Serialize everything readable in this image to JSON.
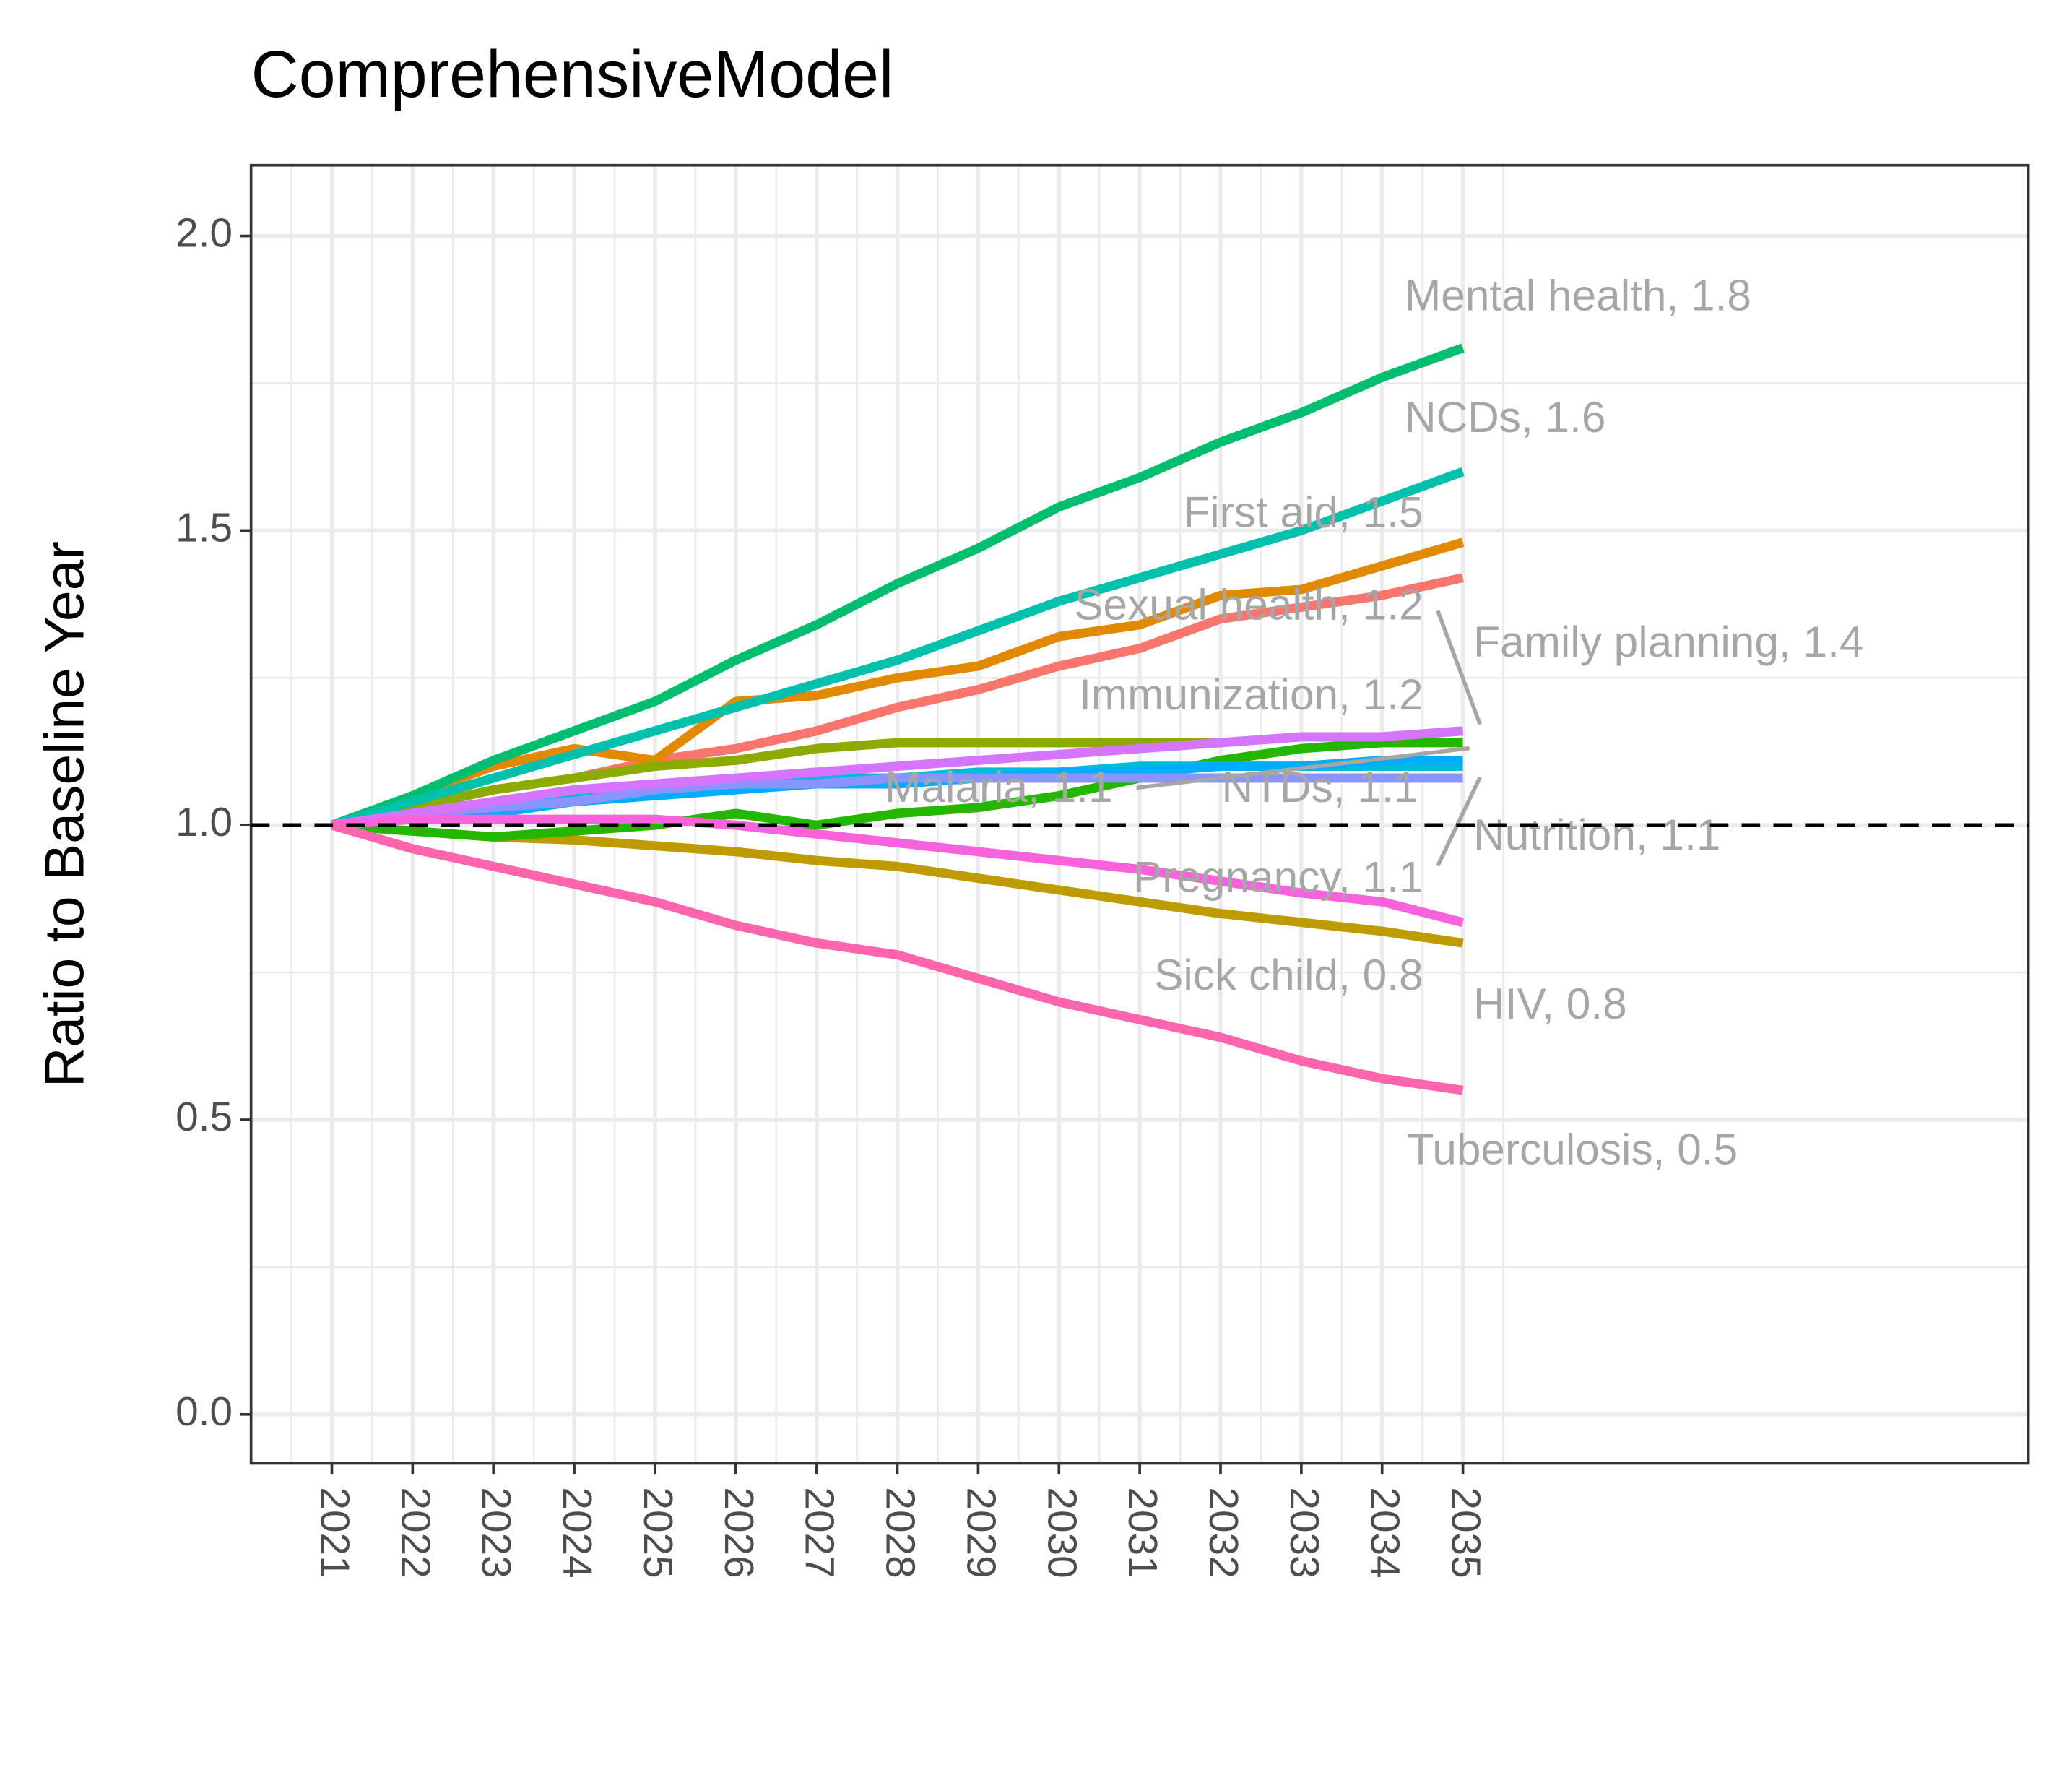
{
  "chart_data": {
    "type": "line",
    "title": "ComprehensiveModel",
    "y_label": "Ratio to Baseline Year",
    "x": [
      2021,
      2022,
      2023,
      2024,
      2025,
      2026,
      2027,
      2028,
      2029,
      2030,
      2031,
      2032,
      2033,
      2034,
      2035
    ],
    "xlim": [
      2020,
      2042
    ],
    "xticks": [
      2021,
      2022,
      2023,
      2024,
      2025,
      2026,
      2027,
      2028,
      2029,
      2030,
      2031,
      2032,
      2033,
      2034,
      2035
    ],
    "ylim": [
      -0.083,
      2.12
    ],
    "yticks": [
      {
        "value": 0,
        "label": "0.0"
      },
      0.5,
      {
        "value": 1,
        "label": "1.0"
      },
      1.5,
      {
        "value": 2,
        "label": "2.0"
      }
    ],
    "grid": true,
    "hline": 1,
    "series": [
      {
        "label": "Family planning, 1.4",
        "color": "#F8766D",
        "values": [
          1.0,
          1.03,
          1.06,
          1.08,
          1.11,
          1.13,
          1.16,
          1.2,
          1.23,
          1.27,
          1.3,
          1.35,
          1.37,
          1.39,
          1.42
        ]
      },
      {
        "label": "First aid, 1.5",
        "color": "#E18A00",
        "values": [
          1.0,
          1.05,
          1.1,
          1.13,
          1.11,
          1.21,
          1.22,
          1.25,
          1.27,
          1.32,
          1.34,
          1.39,
          1.4,
          1.44,
          1.48
        ]
      },
      {
        "label": "HIV, 0.8",
        "color": "#BE9C00",
        "values": [
          1.0,
          0.99,
          0.98,
          0.975,
          0.965,
          0.955,
          0.94,
          0.93,
          0.91,
          0.89,
          0.87,
          0.85,
          0.835,
          0.82,
          0.8
        ]
      },
      {
        "label": "Immunization, 1.2",
        "color": "#8CAB00",
        "values": [
          1.0,
          1.03,
          1.06,
          1.08,
          1.1,
          1.11,
          1.13,
          1.14,
          1.14,
          1.14,
          1.14,
          1.14,
          1.15,
          1.15,
          1.16
        ]
      },
      {
        "label": "Malaria, 1.1",
        "color": "#24B700",
        "values": [
          1.0,
          0.99,
          0.98,
          0.99,
          1.0,
          1.02,
          1.0,
          1.02,
          1.03,
          1.05,
          1.08,
          1.11,
          1.13,
          1.14,
          1.14
        ]
      },
      {
        "label": "Mental health, 1.8",
        "color": "#00BE70",
        "values": [
          1.0,
          1.05,
          1.11,
          1.16,
          1.21,
          1.28,
          1.34,
          1.41,
          1.47,
          1.54,
          1.59,
          1.65,
          1.7,
          1.76,
          1.81
        ]
      },
      {
        "label": "NCDs, 1.6",
        "color": "#00C1AB",
        "values": [
          1.0,
          1.04,
          1.08,
          1.12,
          1.16,
          1.2,
          1.24,
          1.28,
          1.33,
          1.38,
          1.42,
          1.46,
          1.5,
          1.55,
          1.6
        ]
      },
      {
        "label": "NTDs, 1.1",
        "color": "#00BBDA",
        "values": [
          1.0,
          1.02,
          1.03,
          1.05,
          1.06,
          1.07,
          1.08,
          1.08,
          1.09,
          1.09,
          1.1,
          1.1,
          1.1,
          1.1,
          1.1
        ]
      },
      {
        "label": "Nutrition, 1.1",
        "color": "#00ACFC",
        "values": [
          1.0,
          1.01,
          1.02,
          1.04,
          1.05,
          1.06,
          1.07,
          1.07,
          1.08,
          1.09,
          1.09,
          1.1,
          1.1,
          1.11,
          1.11
        ]
      },
      {
        "label": "Pregnancy, 1.1",
        "color": "#8B93FF",
        "values": [
          1.0,
          1.02,
          1.03,
          1.04,
          1.06,
          1.07,
          1.07,
          1.08,
          1.08,
          1.08,
          1.08,
          1.08,
          1.08,
          1.08,
          1.08
        ]
      },
      {
        "label": "Sexual health, 1.2",
        "color": "#D575FE",
        "values": [
          1.0,
          1.02,
          1.04,
          1.06,
          1.07,
          1.08,
          1.09,
          1.1,
          1.11,
          1.12,
          1.13,
          1.14,
          1.15,
          1.15,
          1.16
        ]
      },
      {
        "label": "Sick child, 0.8",
        "color": "#F962DD",
        "values": [
          1.0,
          1.01,
          1.01,
          1.01,
          1.01,
          1.0,
          0.985,
          0.97,
          0.955,
          0.94,
          0.925,
          0.905,
          0.885,
          0.87,
          0.835
        ]
      },
      {
        "label": "Tuberculosis, 0.5",
        "color": "#FF65AC",
        "values": [
          1.0,
          0.96,
          0.93,
          0.9,
          0.87,
          0.83,
          0.8,
          0.78,
          0.74,
          0.7,
          0.67,
          0.64,
          0.6,
          0.57,
          0.55
        ]
      }
    ]
  }
}
